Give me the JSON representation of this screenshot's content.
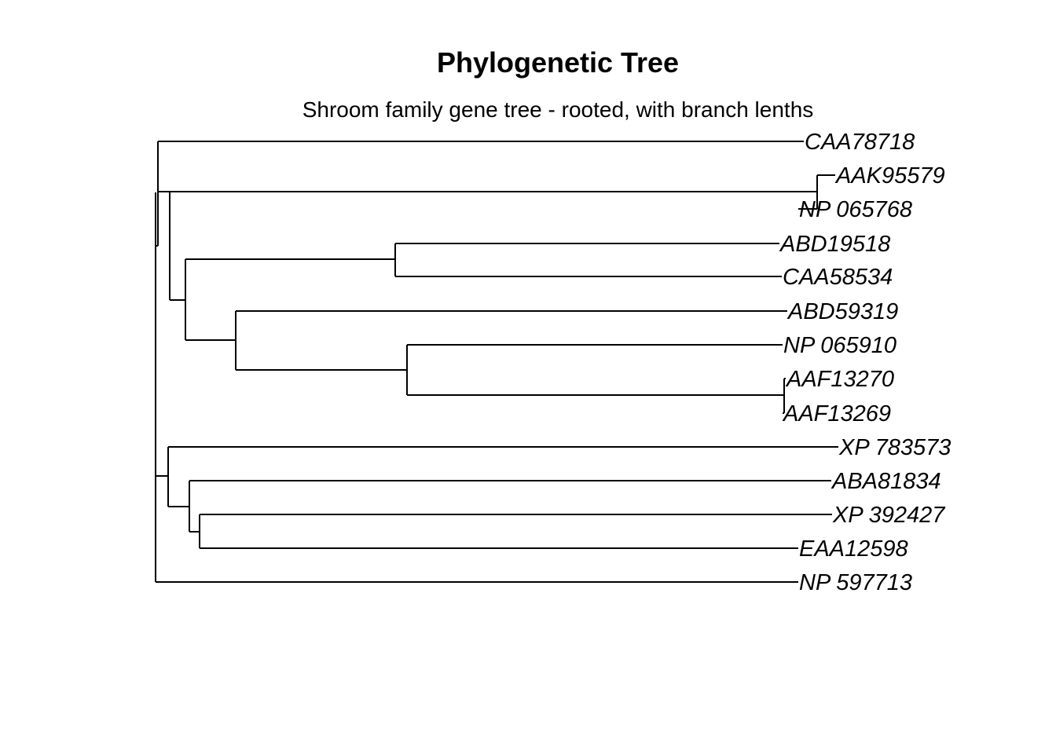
{
  "title": "Phylogenetic Tree",
  "subtitle": "Shroom family gene tree - rooted, with branch lenths",
  "tips": {
    "t0": "CAA78718",
    "t1": "AAK95579",
    "t2": "NP 065768",
    "t3": "ABD19518",
    "t4": "CAA58534",
    "t5": "ABD59319",
    "t6": "NP 065910",
    "t7": "AAF13270",
    "t8": "AAF13269",
    "t9": "XP 783573",
    "t10": "ABA81834",
    "t11": "XP 392427",
    "t12": "EAA12598",
    "t13": "NP 597713"
  },
  "colors": {
    "line": "#000000",
    "background": "#ffffff"
  }
}
